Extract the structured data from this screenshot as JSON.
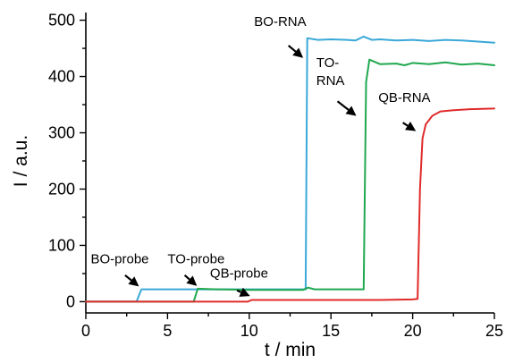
{
  "chart_data": {
    "type": "line",
    "title": "",
    "xlabel": "t / min",
    "ylabel": "I / a.u.",
    "xlim": [
      0,
      25
    ],
    "ylim": [
      -20,
      520
    ],
    "xticks": [
      0,
      5,
      10,
      15,
      20,
      25
    ],
    "yticks": [
      0,
      100,
      200,
      300,
      400,
      500
    ],
    "grid": false,
    "legend": "none",
    "series": [
      {
        "color": "#3aa8d8",
        "x": [
          0,
          3.1,
          3.4,
          5.0,
          6.6,
          8.0,
          10.0,
          12.0,
          13.2,
          13.45,
          13.55,
          14.2,
          15.0,
          16.0,
          16.5,
          17.0,
          17.5,
          18.0,
          19.0,
          20.0,
          21.0,
          22.0,
          23.0,
          24.0,
          25.0
        ],
        "y": [
          0,
          0,
          22,
          22,
          22,
          22,
          22,
          22,
          22,
          22,
          468,
          465,
          466,
          465,
          464,
          471,
          465,
          466,
          464,
          465,
          463,
          465,
          464,
          462,
          460
        ]
      },
      {
        "color": "#1fa84f",
        "x": [
          0,
          6.6,
          6.85,
          8.0,
          10.0,
          12.0,
          13.3,
          13.6,
          14.0,
          15.0,
          16.5,
          17.0,
          17.15,
          17.35,
          18.0,
          19.0,
          19.5,
          20.0,
          21.0,
          22.0,
          23.0,
          24.0,
          25.0
        ],
        "y": [
          0,
          0,
          23,
          22,
          21,
          21,
          21,
          25,
          22,
          22,
          22,
          22,
          390,
          430,
          422,
          423,
          420,
          424,
          422,
          425,
          421,
          423,
          420
        ]
      },
      {
        "color": "#e02b2b",
        "x": [
          0,
          9.9,
          10.15,
          12.0,
          15.0,
          18.0,
          20.0,
          20.3,
          20.45,
          20.6,
          20.8,
          21.2,
          21.7,
          22.5,
          23.5,
          25.0
        ],
        "y": [
          0,
          0,
          3,
          3,
          3,
          3,
          4,
          5,
          200,
          290,
          315,
          330,
          338,
          340,
          342,
          343
        ]
      }
    ],
    "annotations": [
      {
        "text": "BO-probe",
        "tx": 0.3,
        "ty": 68,
        "x1": 2.4,
        "y1": 47,
        "x2": 3.25,
        "y2": 27
      },
      {
        "text": "TO-probe",
        "tx": 5.0,
        "ty": 68,
        "x1": 6.05,
        "y1": 47,
        "x2": 6.8,
        "y2": 28
      },
      {
        "text": "QB-probe",
        "tx": 7.6,
        "ty": 43,
        "x1": 9.25,
        "y1": 20,
        "x2": 10.05,
        "y2": 10
      },
      {
        "text": "BO-RNA",
        "tx": 10.3,
        "ty": 490,
        "x1": 12.4,
        "y1": 455,
        "x2": 13.3,
        "y2": 433
      },
      {
        "text": "TO-",
        "tx": 14.1,
        "ty": 417,
        "x1": 15.4,
        "y1": 356,
        "x2": 16.55,
        "y2": 330
      },
      {
        "text": "RNA",
        "tx": 14.1,
        "ty": 385
      },
      {
        "text": "QB-RNA",
        "tx": 17.9,
        "ty": 355,
        "x1": 19.4,
        "y1": 318,
        "x2": 20.2,
        "y2": 303
      }
    ]
  }
}
